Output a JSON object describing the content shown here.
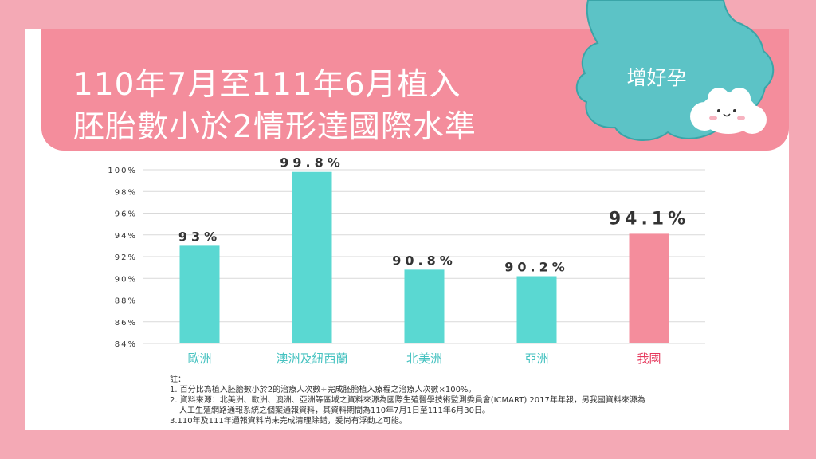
{
  "title": {
    "line1": "110年7月至111年6月植入",
    "line2": "胚胎數小於2情形達國際水準"
  },
  "brand": "增好孕",
  "colors": {
    "background": "#f4a9b5",
    "header": "#f48d9c",
    "bar_default": "#5ad8d2",
    "bar_highlight": "#f48d9c",
    "highlight_label": "#e5385c",
    "category_label": "#45c2c0",
    "cloud": "#5cc3c6"
  },
  "chart_data": {
    "type": "bar",
    "categories": [
      "歐洲",
      "澳洲及紐西蘭",
      "北美洲",
      "亞洲",
      "我國"
    ],
    "values": [
      93,
      99.8,
      90.8,
      90.2,
      94.1
    ],
    "value_labels": [
      "93%",
      "99.8%",
      "90.8%",
      "90.2%",
      "94.1%"
    ],
    "highlight_index": 4,
    "ylim": [
      84,
      100
    ],
    "yticks": [
      84,
      86,
      88,
      90,
      92,
      94,
      96,
      98,
      100
    ],
    "ytick_labels": [
      "84%",
      "86%",
      "88%",
      "90%",
      "92%",
      "94%",
      "96%",
      "98%",
      "100%"
    ],
    "grid": true,
    "xlabel": "",
    "ylabel": ""
  },
  "notes": {
    "header": "註：",
    "items": [
      "1. 百分比為植入胚胎數小於2的治療人次數÷完成胚胎植入療程之治療人次數×100%。",
      "2. 資料來源：北美洲、歐洲、澳洲、亞洲等區域之資料來源為國際生殖醫學技術監測委員會(ICMART) 2017年年報，另我國資料來源為",
      "人工生殖網路通報系統之個案通報資料，其資料期間為110年7月1日至111年6月30日。",
      "3.110年及111年通報資料尚未完成清理除錯，爰尚有浮動之可能。"
    ]
  }
}
